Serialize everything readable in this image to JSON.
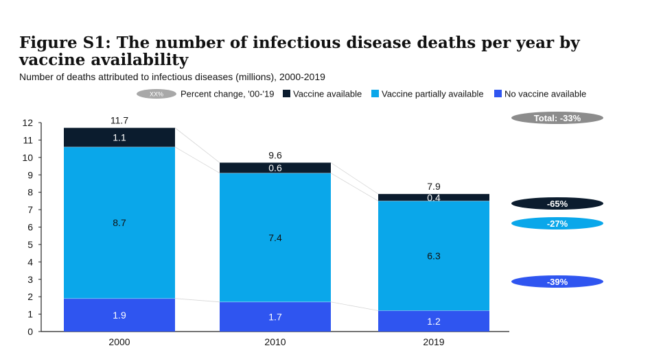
{
  "title": "Figure S1: The number of infectious disease deaths per year by vaccine availability",
  "subtitle": "Number of deaths attributed to infectious diseases (millions), 2000-2019",
  "legend": {
    "placeholder_label": "XX%",
    "percent_change_label": "Percent change, '00-'19"
  },
  "chart_data": {
    "type": "bar",
    "stacked": true,
    "categories": [
      "2000",
      "2010",
      "2019"
    ],
    "series": [
      {
        "name": "No vaccine available",
        "values": [
          1.9,
          1.7,
          1.2
        ],
        "color": "#2f55f0"
      },
      {
        "name": "Vaccine partially available",
        "values": [
          8.7,
          7.4,
          6.3
        ],
        "color": "#0aa7ea"
      },
      {
        "name": "Vaccine available",
        "values": [
          1.1,
          0.6,
          0.4
        ],
        "color": "#0b1c2e"
      }
    ],
    "totals": [
      "11.7",
      "9.6",
      "7.9"
    ],
    "ylim": [
      0,
      12
    ],
    "yticks": [
      0,
      1,
      2,
      3,
      4,
      5,
      6,
      7,
      8,
      9,
      10,
      11,
      12
    ],
    "percent_change": [
      {
        "label": "Total: -33%",
        "for": "total",
        "color": "#8c8c8c"
      },
      {
        "label": "-65%",
        "for": "Vaccine available",
        "color": "#0b1c2e"
      },
      {
        "label": "-27%",
        "for": "Vaccine partially available",
        "color": "#0aa7ea"
      },
      {
        "label": "-39%",
        "for": "No vaccine available",
        "color": "#2f55f0"
      }
    ],
    "legend_position": "top",
    "grid": false
  }
}
